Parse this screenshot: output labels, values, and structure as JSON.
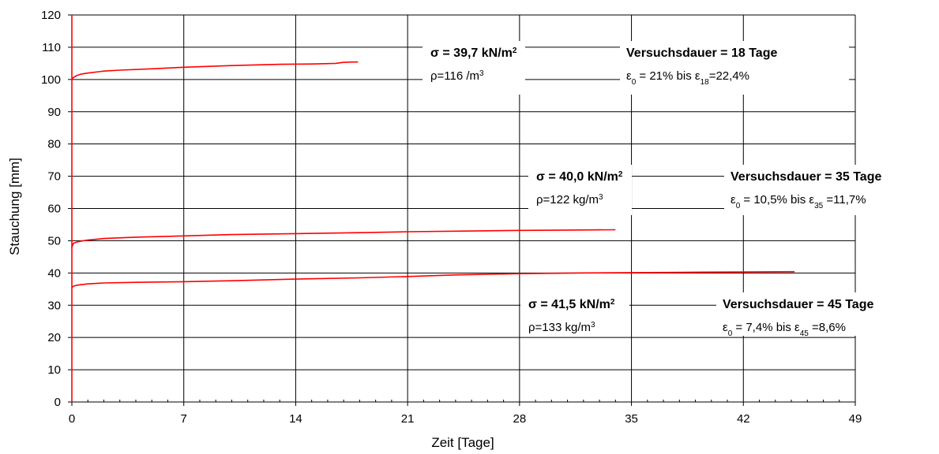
{
  "chart_data": {
    "type": "line",
    "xlabel": "Zeit [Tage]",
    "ylabel": "Stauchung [mm]",
    "xlim": [
      0,
      49
    ],
    "ylim": [
      0,
      120
    ],
    "xticks": [
      0,
      7,
      14,
      21,
      28,
      35,
      42,
      49
    ],
    "yticks": [
      0,
      10,
      20,
      30,
      40,
      50,
      60,
      70,
      80,
      90,
      100,
      110,
      120
    ],
    "grid": true,
    "series_color": "#ff0000",
    "series": [
      {
        "x": [
          0,
          0.1,
          0.3,
          0.6,
          1,
          2,
          3,
          5,
          7,
          10,
          13,
          15,
          16.5,
          17,
          17.5,
          17.9
        ],
        "values": [
          100,
          100.6,
          101.2,
          101.7,
          102.0,
          102.6,
          102.9,
          103.3,
          103.8,
          104.3,
          104.7,
          104.8,
          105.0,
          105.3,
          105.4,
          105.4
        ]
      },
      {
        "x": [
          0,
          0.1,
          0.3,
          0.6,
          1,
          2,
          4,
          7,
          10,
          14,
          18,
          21,
          25,
          28,
          31,
          34
        ],
        "values": [
          48,
          49.2,
          49.6,
          49.9,
          50.2,
          50.7,
          51.1,
          51.5,
          51.9,
          52.2,
          52.5,
          52.8,
          53.0,
          53.2,
          53.3,
          53.4
        ]
      },
      {
        "x": [
          0,
          0.1,
          0.3,
          0.6,
          1,
          2,
          4,
          7,
          10,
          14,
          18,
          21,
          24,
          28,
          32,
          35,
          38,
          42,
          45.2
        ],
        "values": [
          35.5,
          35.9,
          36.2,
          36.4,
          36.6,
          36.9,
          37.1,
          37.3,
          37.6,
          38.1,
          38.5,
          38.9,
          39.4,
          39.8,
          40.0,
          40.1,
          40.2,
          40.3,
          40.4
        ]
      }
    ],
    "annotations": [
      {
        "stress": "σ = 39,7 kN/m",
        "stress_sup": "2",
        "density": "ρ=116 /m",
        "density_sup": "3",
        "duration": "Versuchsdauer = 18 Tage",
        "strain_start": "ε",
        "strain_start_sub": "0",
        "strain_mid": " = 21% bis ε",
        "strain_end_sub": "18",
        "strain_end": "=22,4%"
      },
      {
        "stress": "σ = 40,0 kN/m",
        "stress_sup": "2",
        "density": "ρ=122 kg/m",
        "density_sup": "3",
        "duration": "Versuchsdauer = 35 Tage",
        "strain_start": "ε",
        "strain_start_sub": "0",
        "strain_mid": " = 10,5% bis ε",
        "strain_end_sub": "35",
        "strain_end": " =11,7%"
      },
      {
        "stress": "σ = 41,5 kN/m",
        "stress_sup": "2",
        "density": "ρ=133 kg/m",
        "density_sup": "3",
        "duration": "Versuchsdauer = 45 Tage",
        "strain_start": "ε",
        "strain_start_sub": "0",
        "strain_mid": " = 7,4% bis ε",
        "strain_end_sub": "45",
        "strain_end": " =8,6%"
      }
    ]
  }
}
